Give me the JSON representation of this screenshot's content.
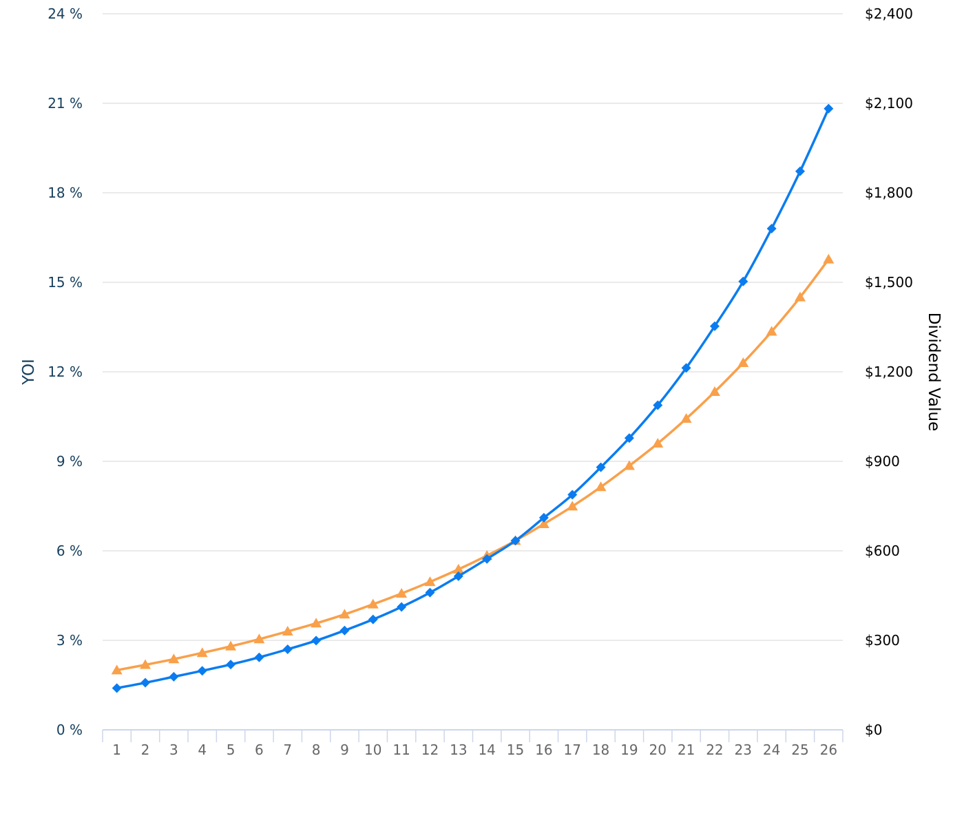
{
  "chart_data": {
    "type": "line",
    "x": [
      1,
      2,
      3,
      4,
      5,
      6,
      7,
      8,
      9,
      10,
      11,
      12,
      13,
      14,
      15,
      16,
      17,
      18,
      19,
      20,
      21,
      22,
      23,
      24,
      25,
      26
    ],
    "y_left": {
      "title": "YOI",
      "ticks": [
        "0 %",
        "3 %",
        "6 %",
        "9 %",
        "12 %",
        "15 %",
        "18 %",
        "21 %",
        "24 %"
      ],
      "range": [
        0,
        24
      ]
    },
    "y_right": {
      "title": "Dividend Value",
      "ticks": [
        "$0",
        "$300",
        "$600",
        "$900",
        "$1,200",
        "$1,500",
        "$1,800",
        "$2,100",
        "$2,400"
      ],
      "range": [
        0,
        2400
      ]
    },
    "grid": true,
    "legend": "none",
    "series": [
      {
        "axis": "right",
        "color": "#0a7cf0",
        "marker": "diamond",
        "values": [
          140,
          158,
          178,
          198,
          219,
          243,
          270,
          299,
          333,
          370,
          412,
          460,
          515,
          573,
          634,
          711,
          788,
          880,
          978,
          1088,
          1213,
          1353,
          1503,
          1680,
          1872,
          2082
        ]
      },
      {
        "axis": "left",
        "color": "#f9a04a",
        "marker": "triangle",
        "values": [
          2.0,
          2.18,
          2.37,
          2.58,
          2.8,
          3.04,
          3.3,
          3.57,
          3.87,
          4.21,
          4.57,
          4.96,
          5.38,
          5.84,
          6.34,
          6.9,
          7.49,
          8.14,
          8.85,
          9.6,
          10.43,
          11.33,
          12.3,
          13.35,
          14.5,
          15.77
        ]
      }
    ]
  }
}
